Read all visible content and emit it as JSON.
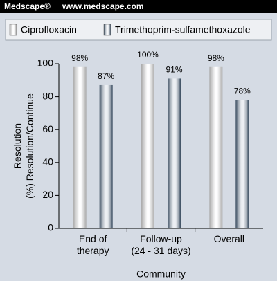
{
  "header": {
    "brand": "Medscape®",
    "url": "www.medscape.com"
  },
  "chart_data": {
    "type": "bar",
    "ylabel": "Resolution\n(%) Resolution/Continue",
    "xlabel": "Community",
    "categories": [
      "End of\ntherapy",
      "Follow-up\n(24 - 31 days)",
      "Overall"
    ],
    "series": [
      {
        "name": "Ciprofloxacin",
        "color": "#a9a9a9",
        "values": [
          98,
          100,
          98
        ],
        "value_labels": [
          "98%",
          "100%",
          "98%"
        ]
      },
      {
        "name": "Trimethoprim-sulfamethoxazole",
        "color": "#33465a",
        "values": [
          87,
          91,
          78
        ],
        "value_labels": [
          "87%",
          "91%",
          "78%"
        ]
      }
    ],
    "ylim": [
      0,
      100
    ],
    "yticks": [
      0,
      20,
      40,
      60,
      80,
      100
    ],
    "grid": false
  }
}
